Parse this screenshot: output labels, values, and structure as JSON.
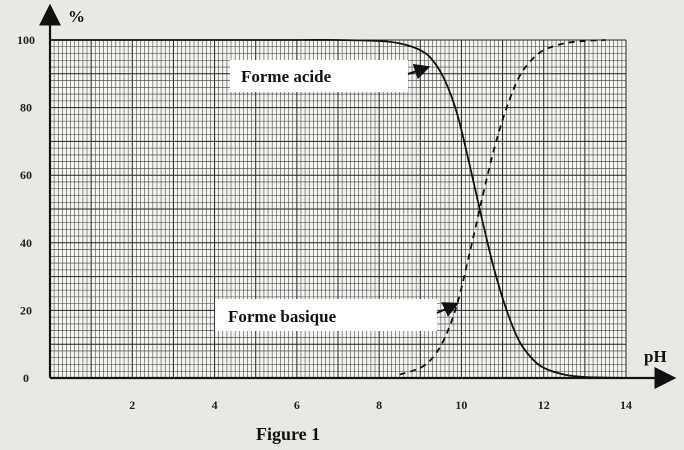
{
  "chart_data": {
    "type": "line",
    "title": "",
    "caption": "Figure 1",
    "xlabel": "pH",
    "ylabel": "%",
    "xlim": [
      0,
      14
    ],
    "ylim": [
      0,
      100
    ],
    "x_ticks": [
      2,
      4,
      6,
      8,
      10,
      12,
      14
    ],
    "y_ticks": [
      0,
      20,
      40,
      60,
      80,
      100
    ],
    "x_tick_labels": [
      "2",
      "4",
      "6",
      "8",
      "10",
      "12",
      "14"
    ],
    "y_tick_labels": [
      "0",
      "20",
      "40",
      "60",
      "80",
      "100"
    ],
    "grid": true,
    "legend": "none",
    "series": [
      {
        "name": "Forme acide",
        "style": "solid",
        "x": [
          0,
          2,
          4,
          6,
          7,
          8,
          8.5,
          9,
          9.3,
          9.6,
          9.9,
          10.2,
          10.5,
          10.8,
          11.1,
          11.4,
          11.7,
          12,
          12.5,
          13,
          14
        ],
        "y": [
          100,
          100,
          100,
          100,
          100,
          99.7,
          99,
          97,
          94,
          88,
          78,
          63,
          47,
          32,
          20,
          11,
          6,
          3,
          1,
          0.3,
          0
        ]
      },
      {
        "name": "Forme basique",
        "style": "dashed",
        "x": [
          8.5,
          9,
          9.3,
          9.6,
          9.9,
          10.2,
          10.5,
          10.8,
          11.1,
          11.4,
          11.7,
          12,
          12.5,
          13,
          13.5
        ],
        "y": [
          1,
          3,
          6,
          12,
          22,
          37,
          53,
          68,
          80,
          89,
          94,
          97,
          99,
          99.7,
          100
        ]
      }
    ],
    "annotations": [
      {
        "text": "Forme acide",
        "points_to": {
          "x": 9.2,
          "y": 92
        }
      },
      {
        "text": "Forme basique",
        "points_to": {
          "x": 9.9,
          "y": 22
        }
      }
    ]
  }
}
